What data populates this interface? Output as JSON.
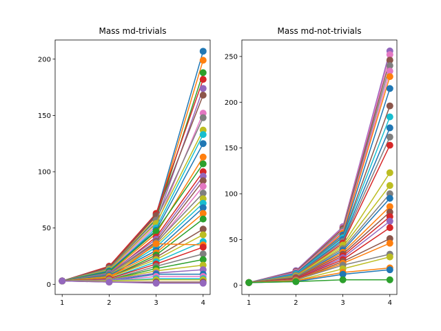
{
  "chart_data": [
    {
      "type": "line",
      "title": "Mass md-trivials",
      "x": [
        1,
        2,
        3,
        4
      ],
      "xticks": [
        1,
        2,
        3,
        4
      ],
      "yticks": [
        0,
        50,
        100,
        150,
        200
      ],
      "xlim": [
        0.85,
        4.15
      ],
      "ylim": [
        -9,
        217
      ],
      "marker": "circle",
      "grid": false,
      "series": [
        {
          "color": "#1f77b4",
          "values": [
            3,
            16,
            62,
            207
          ]
        },
        {
          "color": "#ff7f0e",
          "values": [
            3,
            15,
            60,
            199
          ]
        },
        {
          "color": "#2ca02c",
          "values": [
            3,
            14,
            58,
            188
          ]
        },
        {
          "color": "#d62728",
          "values": [
            3,
            16,
            63,
            182
          ]
        },
        {
          "color": "#9467bd",
          "values": [
            3,
            13,
            55,
            174
          ]
        },
        {
          "color": "#8c564b",
          "values": [
            3,
            15,
            61,
            168
          ]
        },
        {
          "color": "#e377c2",
          "values": [
            3,
            12,
            52,
            152
          ]
        },
        {
          "color": "#7f7f7f",
          "values": [
            3,
            14,
            57,
            148
          ]
        },
        {
          "color": "#bcbd22",
          "values": [
            3,
            13,
            54,
            137
          ]
        },
        {
          "color": "#17becf",
          "values": [
            3,
            11,
            50,
            133
          ]
        },
        {
          "color": "#1f77b4",
          "values": [
            3,
            12,
            48,
            125
          ]
        },
        {
          "color": "#ff7f0e",
          "values": [
            3,
            10,
            45,
            113
          ]
        },
        {
          "color": "#2ca02c",
          "values": [
            3,
            11,
            47,
            107
          ]
        },
        {
          "color": "#d62728",
          "values": [
            3,
            9,
            42,
            100
          ]
        },
        {
          "color": "#9467bd",
          "values": [
            3,
            10,
            40,
            96
          ]
        },
        {
          "color": "#8c564b",
          "values": [
            3,
            9,
            38,
            92
          ]
        },
        {
          "color": "#e377c2",
          "values": [
            3,
            8,
            36,
            87
          ]
        },
        {
          "color": "#7f7f7f",
          "values": [
            3,
            9,
            37,
            81
          ]
        },
        {
          "color": "#bcbd22",
          "values": [
            3,
            8,
            35,
            76
          ]
        },
        {
          "color": "#17becf",
          "values": [
            3,
            7,
            33,
            72
          ]
        },
        {
          "color": "#1f77b4",
          "values": [
            3,
            8,
            30,
            68
          ]
        },
        {
          "color": "#ff7f0e",
          "values": [
            3,
            7,
            28,
            63
          ]
        },
        {
          "color": "#2ca02c",
          "values": [
            3,
            6,
            26,
            58
          ]
        },
        {
          "color": "#8c564b",
          "values": [
            3,
            6,
            24,
            49
          ]
        },
        {
          "color": "#bcbd22",
          "values": [
            3,
            6,
            22,
            44
          ]
        },
        {
          "color": "#17becf",
          "values": [
            3,
            5,
            20,
            38
          ]
        },
        {
          "color": "#ff7f0e",
          "values": [
            3,
            5,
            36,
            35
          ]
        },
        {
          "color": "#d62728",
          "values": [
            3,
            5,
            18,
            33
          ]
        },
        {
          "color": "#7f7f7f",
          "values": [
            3,
            4,
            16,
            27
          ]
        },
        {
          "color": "#2ca02c",
          "values": [
            3,
            4,
            14,
            22
          ]
        },
        {
          "color": "#bcbd22",
          "values": [
            3,
            4,
            12,
            17
          ]
        },
        {
          "color": "#9467bd",
          "values": [
            3,
            4,
            10,
            13
          ]
        },
        {
          "color": "#1f77b4",
          "values": [
            3,
            3,
            9,
            9
          ]
        },
        {
          "color": "#e377c2",
          "values": [
            3,
            3,
            7,
            7
          ]
        },
        {
          "color": "#17becf",
          "values": [
            3,
            3,
            5,
            5
          ]
        },
        {
          "color": "#bcbd22",
          "values": [
            3,
            3,
            4,
            4
          ]
        },
        {
          "color": "#8c564b",
          "values": [
            3,
            2,
            2,
            2
          ]
        },
        {
          "color": "#9467bd",
          "values": [
            3,
            2,
            1,
            1
          ]
        }
      ]
    },
    {
      "type": "line",
      "title": "Mass md-not-trivials",
      "x": [
        1,
        2,
        3,
        4
      ],
      "xticks": [
        1,
        2,
        3,
        4
      ],
      "yticks": [
        0,
        50,
        100,
        150,
        200,
        250
      ],
      "xlim": [
        0.85,
        4.15
      ],
      "ylim": [
        -10,
        268
      ],
      "marker": "circle",
      "grid": false,
      "series": [
        {
          "color": "#9467bd",
          "values": [
            3,
            16,
            64,
            256
          ]
        },
        {
          "color": "#e377c2",
          "values": [
            3,
            15,
            63,
            252
          ]
        },
        {
          "color": "#8c564b",
          "values": [
            3,
            15,
            62,
            246
          ]
        },
        {
          "color": "#7f7f7f",
          "values": [
            3,
            14,
            60,
            240
          ]
        },
        {
          "color": "#e377c2",
          "values": [
            3,
            14,
            58,
            234
          ]
        },
        {
          "color": "#ff7f0e",
          "values": [
            3,
            13,
            57,
            228
          ]
        },
        {
          "color": "#1f77b4",
          "values": [
            3,
            13,
            55,
            215
          ]
        },
        {
          "color": "#8c564b",
          "values": [
            3,
            12,
            53,
            196
          ]
        },
        {
          "color": "#17becf",
          "values": [
            3,
            12,
            52,
            184
          ]
        },
        {
          "color": "#1f77b4",
          "values": [
            3,
            11,
            50,
            172
          ]
        },
        {
          "color": "#7f7f7f",
          "values": [
            3,
            11,
            48,
            162
          ]
        },
        {
          "color": "#d62728",
          "values": [
            3,
            10,
            46,
            153
          ]
        },
        {
          "color": "#bcbd22",
          "values": [
            3,
            10,
            44,
            123
          ]
        },
        {
          "color": "#bcbd22",
          "values": [
            3,
            9,
            42,
            109
          ]
        },
        {
          "color": "#7f7f7f",
          "values": [
            3,
            9,
            40,
            100
          ]
        },
        {
          "color": "#1f77b4",
          "values": [
            3,
            8,
            38,
            95
          ]
        },
        {
          "color": "#ff7f0e",
          "values": [
            3,
            8,
            36,
            86
          ]
        },
        {
          "color": "#8c564b",
          "values": [
            3,
            8,
            34,
            80
          ]
        },
        {
          "color": "#d62728",
          "values": [
            3,
            7,
            32,
            75
          ]
        },
        {
          "color": "#9467bd",
          "values": [
            3,
            7,
            30,
            70
          ]
        },
        {
          "color": "#d62728",
          "values": [
            3,
            7,
            28,
            63
          ]
        },
        {
          "color": "#8c564b",
          "values": [
            3,
            6,
            26,
            51
          ]
        },
        {
          "color": "#ff7f0e",
          "values": [
            3,
            6,
            24,
            46
          ]
        },
        {
          "color": "#7f7f7f",
          "values": [
            3,
            6,
            22,
            34
          ]
        },
        {
          "color": "#bcbd22",
          "values": [
            3,
            5,
            18,
            31
          ]
        },
        {
          "color": "#ff7f0e",
          "values": [
            3,
            5,
            14,
            19
          ]
        },
        {
          "color": "#1f77b4",
          "values": [
            3,
            4,
            12,
            17
          ]
        },
        {
          "color": "#2ca02c",
          "values": [
            3,
            4,
            6,
            6
          ]
        }
      ]
    }
  ]
}
